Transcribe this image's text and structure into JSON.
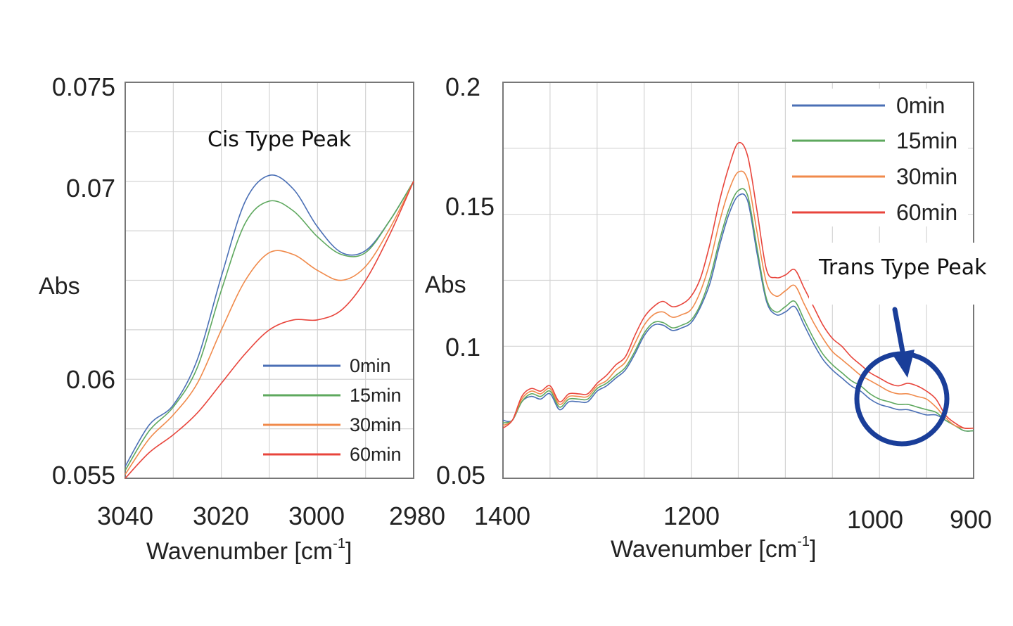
{
  "chart_data": [
    {
      "type": "line",
      "title": "",
      "annotation": "Cis Type Peak",
      "xlabel_main": "Wavenumber [cm",
      "xlabel_sup": "-1",
      "xlabel_close": "]",
      "ylabel": "Abs",
      "xlim": [
        3040,
        2980
      ],
      "ylim": [
        0.055,
        0.075
      ],
      "xticks": [
        "3040",
        "3020",
        "3000",
        "2980"
      ],
      "yticks": [
        "0.055",
        "0.06",
        "0.07",
        "0.075"
      ],
      "x": [
        3040,
        3035,
        3030,
        3025,
        3020,
        3015,
        3010,
        3005,
        3000,
        2995,
        2990,
        2985,
        2980
      ],
      "series": [
        {
          "name": "0min",
          "color": "#4a6fb5",
          "values": [
            0.0556,
            0.0577,
            0.0587,
            0.061,
            0.0652,
            0.069,
            0.0703,
            0.0696,
            0.0677,
            0.0664,
            0.0665,
            0.068,
            0.07
          ]
        },
        {
          "name": "15min",
          "color": "#5ea85e",
          "values": [
            0.0554,
            0.0574,
            0.0586,
            0.0606,
            0.0645,
            0.0679,
            0.069,
            0.0685,
            0.0672,
            0.0663,
            0.0664,
            0.068,
            0.07
          ]
        },
        {
          "name": "30min",
          "color": "#f08a4b",
          "values": [
            0.0552,
            0.057,
            0.0582,
            0.0598,
            0.0625,
            0.065,
            0.0664,
            0.0663,
            0.0655,
            0.065,
            0.0657,
            0.0676,
            0.07
          ]
        },
        {
          "name": "60min",
          "color": "#e8453c",
          "values": [
            0.055,
            0.0563,
            0.0572,
            0.0583,
            0.0598,
            0.0613,
            0.0625,
            0.063,
            0.063,
            0.0635,
            0.065,
            0.0673,
            0.07
          ]
        }
      ],
      "legend_labels": [
        "0min",
        "15min",
        "30min",
        "60min"
      ],
      "legend_position": "bottom-right"
    },
    {
      "type": "line",
      "title": "",
      "annotation": "Trans Type Peak",
      "xlabel_main": "Wavenumber [cm",
      "xlabel_sup": "-1",
      "xlabel_close": "]",
      "ylabel": "Abs",
      "xlim": [
        1400,
        900
      ],
      "ylim": [
        0.05,
        0.2
      ],
      "xticks": [
        "1400",
        "1200",
        "1000",
        "900"
      ],
      "yticks": [
        "0.05",
        "0.1",
        "0.15",
        "0.2"
      ],
      "x": [
        1400,
        1390,
        1380,
        1370,
        1360,
        1350,
        1340,
        1330,
        1320,
        1310,
        1300,
        1290,
        1280,
        1270,
        1260,
        1250,
        1240,
        1230,
        1220,
        1210,
        1200,
        1190,
        1180,
        1170,
        1160,
        1150,
        1140,
        1130,
        1120,
        1110,
        1100,
        1090,
        1080,
        1070,
        1060,
        1050,
        1040,
        1030,
        1020,
        1010,
        1000,
        990,
        980,
        970,
        960,
        950,
        940,
        930,
        920,
        910,
        900
      ],
      "series": [
        {
          "name": "0min",
          "color": "#4a6fb5",
          "values": [
            0.072,
            0.072,
            0.079,
            0.081,
            0.08,
            0.082,
            0.076,
            0.079,
            0.079,
            0.079,
            0.083,
            0.085,
            0.088,
            0.091,
            0.097,
            0.104,
            0.108,
            0.108,
            0.106,
            0.107,
            0.109,
            0.115,
            0.124,
            0.138,
            0.15,
            0.157,
            0.155,
            0.135,
            0.117,
            0.112,
            0.113,
            0.115,
            0.108,
            0.101,
            0.095,
            0.091,
            0.088,
            0.085,
            0.083,
            0.08,
            0.078,
            0.077,
            0.076,
            0.076,
            0.075,
            0.074,
            0.074,
            0.072,
            0.07,
            0.068,
            0.068
          ]
        },
        {
          "name": "15min",
          "color": "#5ea85e",
          "values": [
            0.071,
            0.072,
            0.079,
            0.082,
            0.081,
            0.083,
            0.077,
            0.08,
            0.08,
            0.08,
            0.084,
            0.086,
            0.089,
            0.092,
            0.098,
            0.105,
            0.109,
            0.109,
            0.107,
            0.108,
            0.11,
            0.116,
            0.126,
            0.14,
            0.152,
            0.159,
            0.157,
            0.137,
            0.118,
            0.113,
            0.115,
            0.117,
            0.11,
            0.103,
            0.097,
            0.093,
            0.09,
            0.087,
            0.085,
            0.082,
            0.08,
            0.079,
            0.078,
            0.078,
            0.077,
            0.076,
            0.075,
            0.072,
            0.07,
            0.068,
            0.068
          ]
        },
        {
          "name": "30min",
          "color": "#f08a4b",
          "values": [
            0.07,
            0.072,
            0.08,
            0.083,
            0.082,
            0.084,
            0.078,
            0.081,
            0.081,
            0.081,
            0.085,
            0.087,
            0.091,
            0.094,
            0.101,
            0.108,
            0.112,
            0.113,
            0.111,
            0.112,
            0.114,
            0.121,
            0.132,
            0.147,
            0.159,
            0.166,
            0.163,
            0.143,
            0.124,
            0.119,
            0.121,
            0.123,
            0.116,
            0.109,
            0.103,
            0.098,
            0.095,
            0.092,
            0.089,
            0.087,
            0.085,
            0.083,
            0.082,
            0.082,
            0.081,
            0.08,
            0.077,
            0.073,
            0.07,
            0.069,
            0.069
          ]
        },
        {
          "name": "60min",
          "color": "#e8453c",
          "values": [
            0.069,
            0.072,
            0.081,
            0.084,
            0.083,
            0.085,
            0.079,
            0.082,
            0.082,
            0.082,
            0.086,
            0.089,
            0.093,
            0.096,
            0.104,
            0.111,
            0.115,
            0.117,
            0.115,
            0.116,
            0.119,
            0.126,
            0.139,
            0.155,
            0.168,
            0.177,
            0.172,
            0.151,
            0.129,
            0.126,
            0.127,
            0.129,
            0.122,
            0.115,
            0.108,
            0.103,
            0.1,
            0.096,
            0.093,
            0.09,
            0.088,
            0.086,
            0.085,
            0.086,
            0.085,
            0.083,
            0.08,
            0.074,
            0.071,
            0.069,
            0.069
          ]
        }
      ],
      "legend_labels": [
        "0min",
        "15min",
        "30min",
        "60min"
      ],
      "legend_position": "top-right"
    }
  ],
  "colors": {
    "arrow": "#1a3e99",
    "circle": "#1a3e99"
  }
}
